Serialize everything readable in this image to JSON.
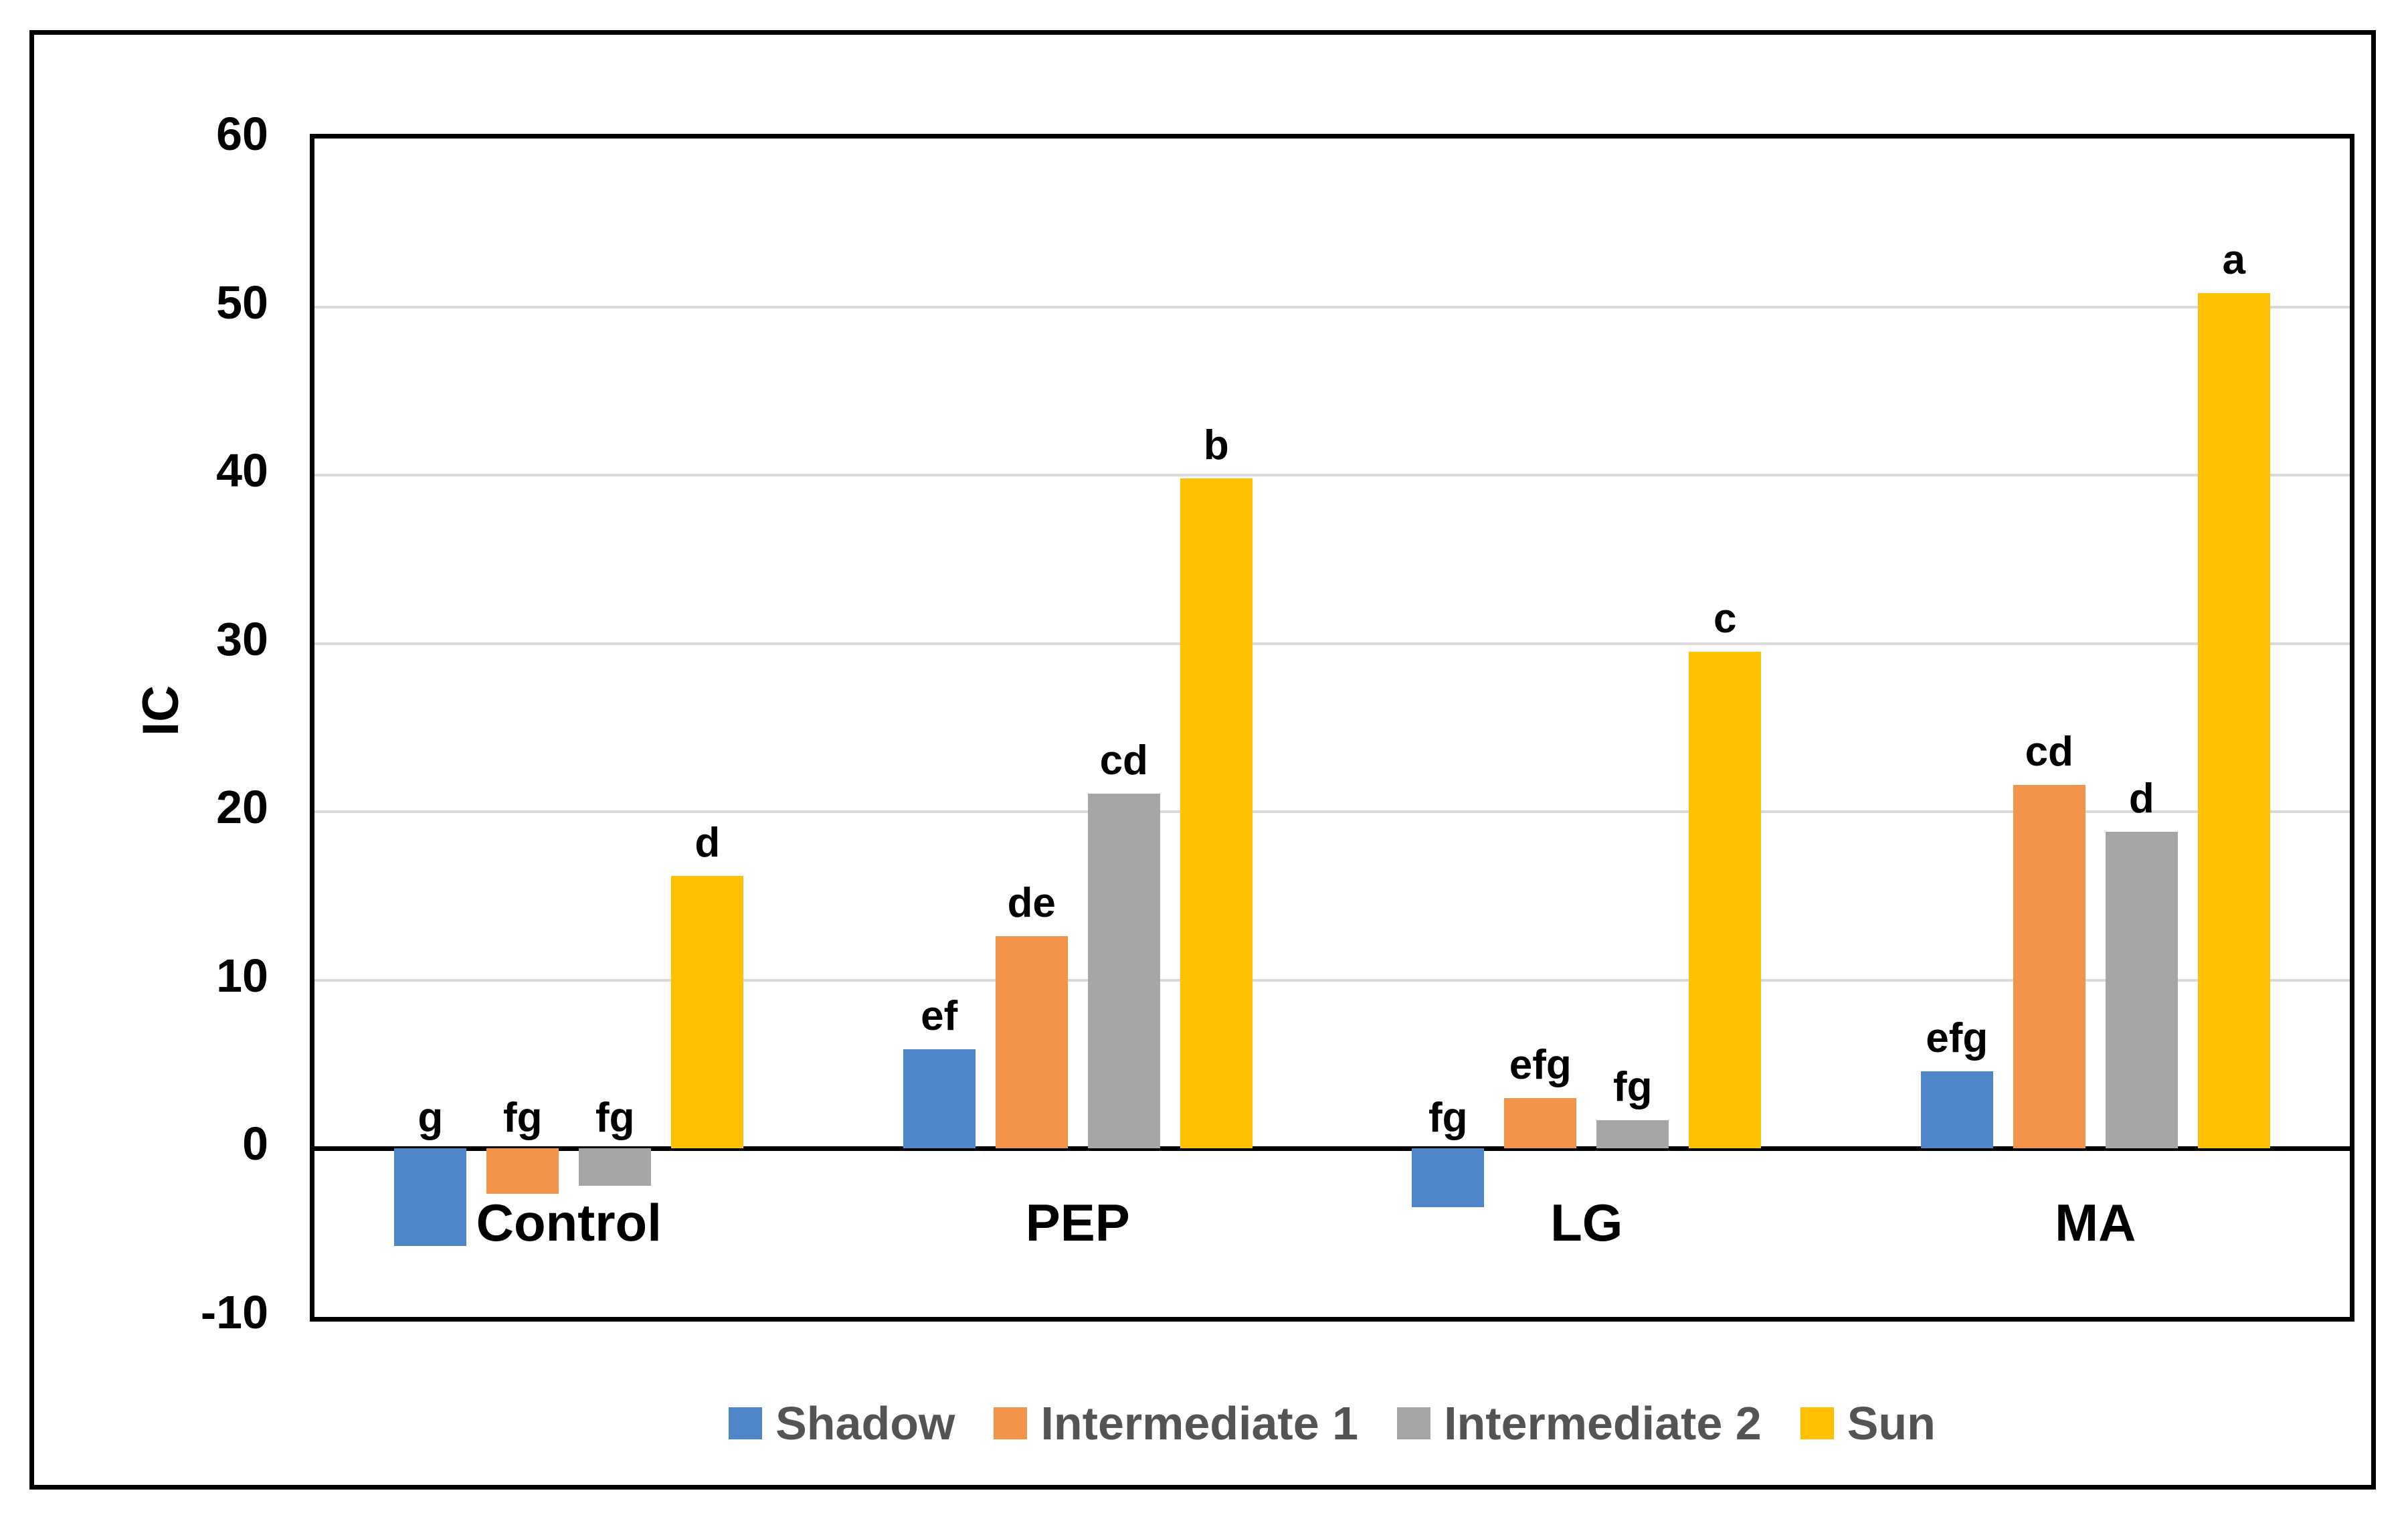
{
  "chart_data": {
    "type": "bar",
    "title": "",
    "xlabel": "",
    "ylabel": "IC",
    "ylim": [
      -10,
      60
    ],
    "ytick_step": 10,
    "yticks": [
      60,
      50,
      40,
      30,
      20,
      10,
      0,
      -10
    ],
    "grid": "horizontal",
    "legend_position": "bottom",
    "categories": [
      "Control",
      "PEP",
      "LG",
      "MA"
    ],
    "series": [
      {
        "name": "Shadow",
        "color": "#4E86C8",
        "values": [
          -5.8,
          5.9,
          -3.5,
          4.6
        ],
        "letters": [
          "g",
          "ef",
          "fg",
          "efg"
        ]
      },
      {
        "name": "Intermediate 1",
        "color": "#F2954A",
        "values": [
          -2.7,
          12.6,
          3.0,
          21.6
        ],
        "letters": [
          "fg",
          "de",
          "efg",
          "cd"
        ]
      },
      {
        "name": "Intermediate 2",
        "color": "#A6A6A6",
        "values": [
          -2.2,
          21.1,
          1.7,
          18.8
        ],
        "letters": [
          "fg",
          "cd",
          "fg",
          "d"
        ]
      },
      {
        "name": "Sun",
        "color": "#FFC001",
        "values": [
          16.2,
          39.8,
          29.5,
          50.8
        ],
        "letters": [
          "d",
          "b",
          "c",
          "a"
        ]
      }
    ]
  },
  "colors": {
    "gridline": "#D9D9D9",
    "axis": "#000000",
    "legend_text": "#545454",
    "background": "#FFFFFF"
  }
}
